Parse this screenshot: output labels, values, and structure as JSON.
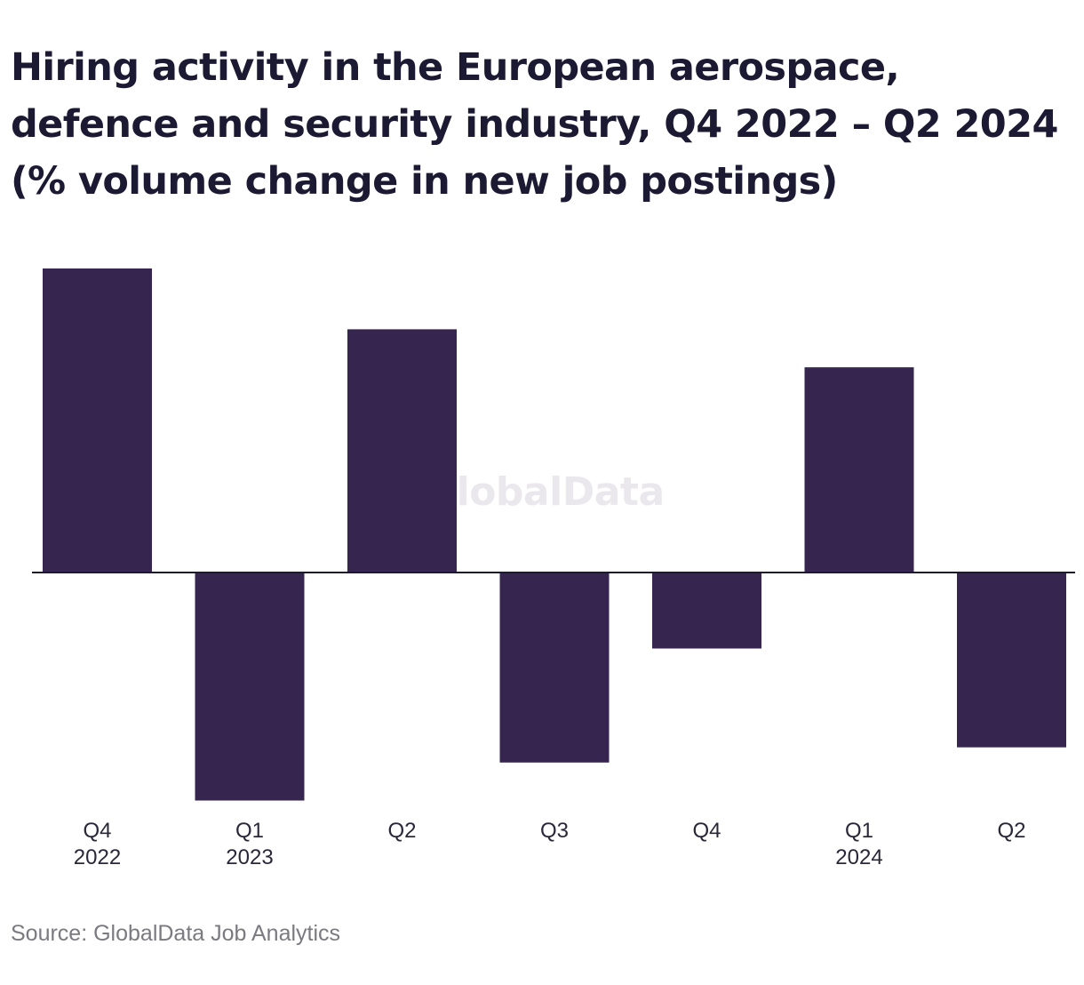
{
  "chart_data": {
    "type": "bar",
    "title": "Hiring activity in the European aerospace, defence and security industry, Q4 2022 – Q2 2024 (% volume change in new job postings)",
    "categories": [
      {
        "quarter": "Q4",
        "year": "2022"
      },
      {
        "quarter": "Q1",
        "year": "2023"
      },
      {
        "quarter": "Q2",
        "year": ""
      },
      {
        "quarter": "Q3",
        "year": ""
      },
      {
        "quarter": "Q4",
        "year": ""
      },
      {
        "quarter": "Q1",
        "year": "2024"
      },
      {
        "quarter": "Q2",
        "year": ""
      }
    ],
    "values": [
      40,
      -30,
      32,
      -25,
      -10,
      27,
      -23
    ],
    "ylim": [
      -30,
      40
    ],
    "grid": false,
    "legend": "none",
    "bar_color": "#36254f",
    "axis_color": "#1c1933"
  },
  "watermark": "GlobalData",
  "source": "Source: GlobalData Job Analytics"
}
